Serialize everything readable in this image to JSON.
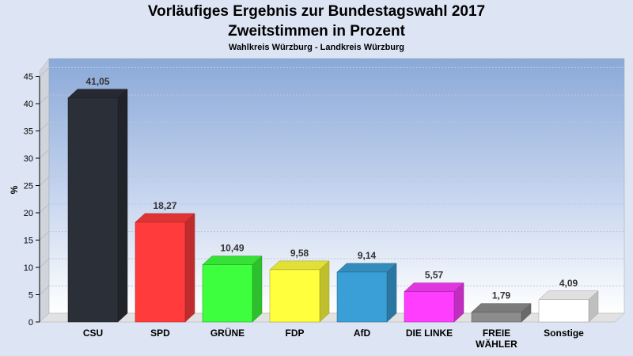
{
  "title": "Vorläufiges Ergebnis zur Bundestagswahl 2017",
  "subtitle": "Zweitstimmen in Prozent",
  "subsubtitle": "Wahlkreis Würzburg - Landkreis Würzburg",
  "chart_data": {
    "type": "bar",
    "title": "Vorläufiges Ergebnis zur Bundestagswahl 2017",
    "subtitle": "Zweitstimmen in Prozent",
    "xlabel": "",
    "ylabel": "%",
    "ylim": [
      0,
      45
    ],
    "yticks": [
      0,
      5,
      10,
      15,
      20,
      25,
      30,
      35,
      40,
      45
    ],
    "grid": true,
    "categories": [
      "CSU",
      "SPD",
      "GRÜNE",
      "FDP",
      "AfD",
      "DIE LINKE",
      "FREIE WÄHLER",
      "Sonstige"
    ],
    "category_lines": [
      [
        "CSU"
      ],
      [
        "SPD"
      ],
      [
        "GRÜNE"
      ],
      [
        "FDP"
      ],
      [
        "AfD"
      ],
      [
        "DIE LINKE"
      ],
      [
        "FREIE",
        "WÄHLER"
      ],
      [
        "Sonstige"
      ]
    ],
    "values": [
      41.05,
      18.27,
      10.49,
      9.58,
      9.14,
      5.57,
      1.79,
      4.09
    ],
    "value_labels": [
      "41,05",
      "18,27",
      "10,49",
      "9,58",
      "9,14",
      "5,57",
      "1,79",
      "4,09"
    ],
    "colors": [
      "#2b2f38",
      "#ff3b3b",
      "#3dff3d",
      "#ffff3d",
      "#3a9fd6",
      "#ff3dff",
      "#8c8c8c",
      "#ffffff"
    ]
  }
}
